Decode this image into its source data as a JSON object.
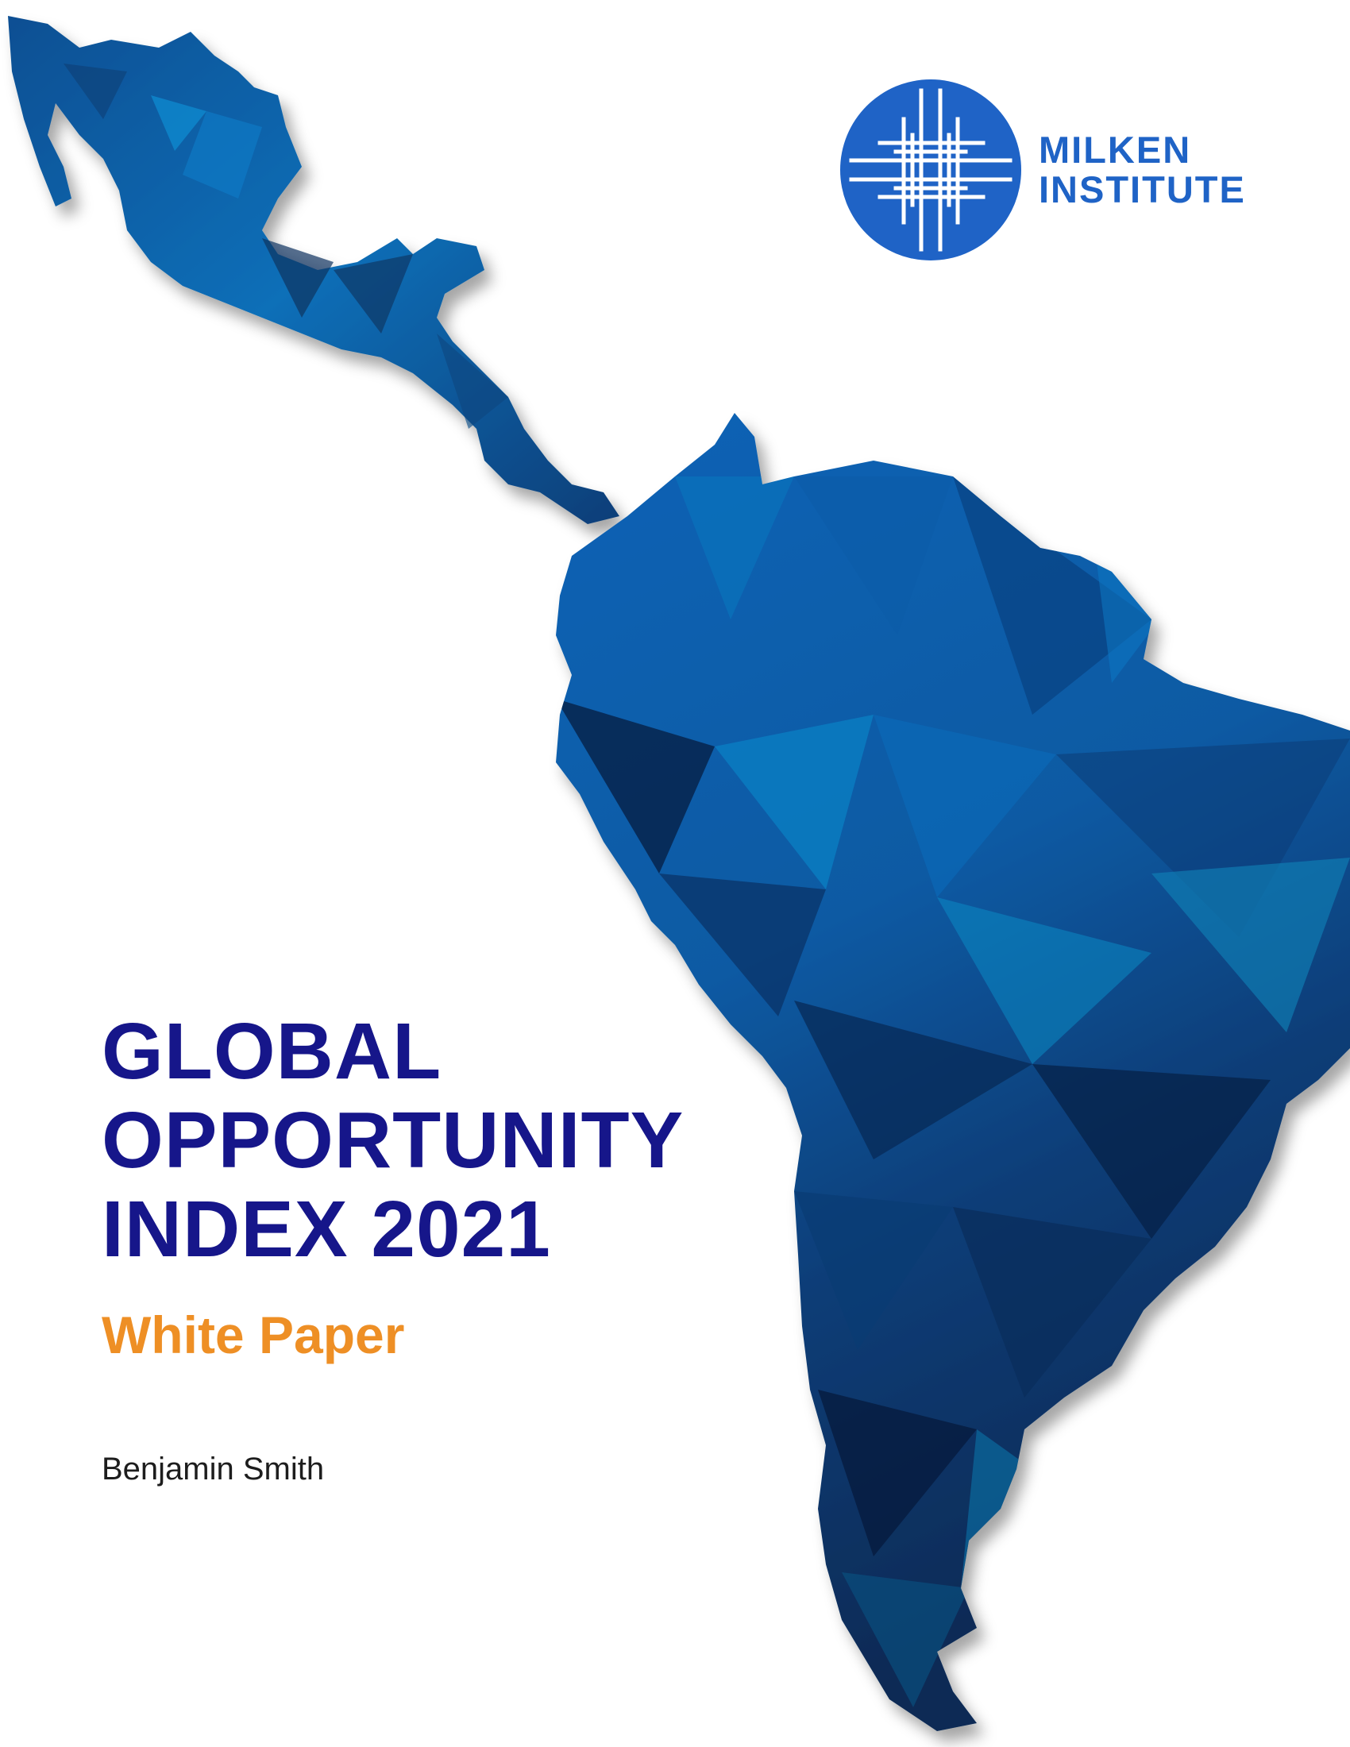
{
  "brand": {
    "name_line1": "MILKEN",
    "name_line2": "INSTITUTE",
    "color": "#1f63c6"
  },
  "cover": {
    "title_line1": "GLOBAL",
    "title_line2": "OPPORTUNITY",
    "title_line3": "INDEX 2021",
    "subtitle": "White Paper",
    "author": "Benjamin Smith",
    "title_color": "#16168a",
    "subtitle_color": "#ee8f25"
  },
  "illustration": {
    "icon": "latin-america-map-illustration",
    "palette": [
      "#0d2a5c",
      "#0a3f80",
      "#0b5aa8",
      "#0a6fc0",
      "#0a86c8",
      "#05224a"
    ]
  }
}
